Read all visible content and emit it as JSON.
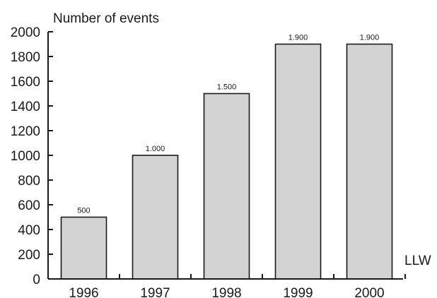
{
  "chart_data": {
    "type": "bar",
    "categories": [
      "1996",
      "1997",
      "1998",
      "1999",
      "2000"
    ],
    "values": [
      500,
      1000,
      1500,
      1900,
      1900
    ],
    "data_labels": [
      "500",
      "1.000",
      "1.500",
      "1.900",
      "1.900"
    ],
    "title": "",
    "ylabel": "Number of events",
    "xlabel": "LLW",
    "ylim": [
      0,
      2000
    ],
    "yticks": [
      0,
      200,
      400,
      600,
      800,
      1000,
      1200,
      1400,
      1600,
      1800,
      2000
    ],
    "ytick_labels": [
      "0",
      "200",
      "400",
      "600",
      "800",
      "1000",
      "1200",
      "1400",
      "1600",
      "1800",
      "2000"
    ],
    "grid": false,
    "legend": "none",
    "colors": {
      "bar_fill": "#d3d3d3",
      "bar_stroke": "#1a1a1a",
      "axis": "#1a1a1a",
      "text": "#1a1a1a"
    }
  }
}
